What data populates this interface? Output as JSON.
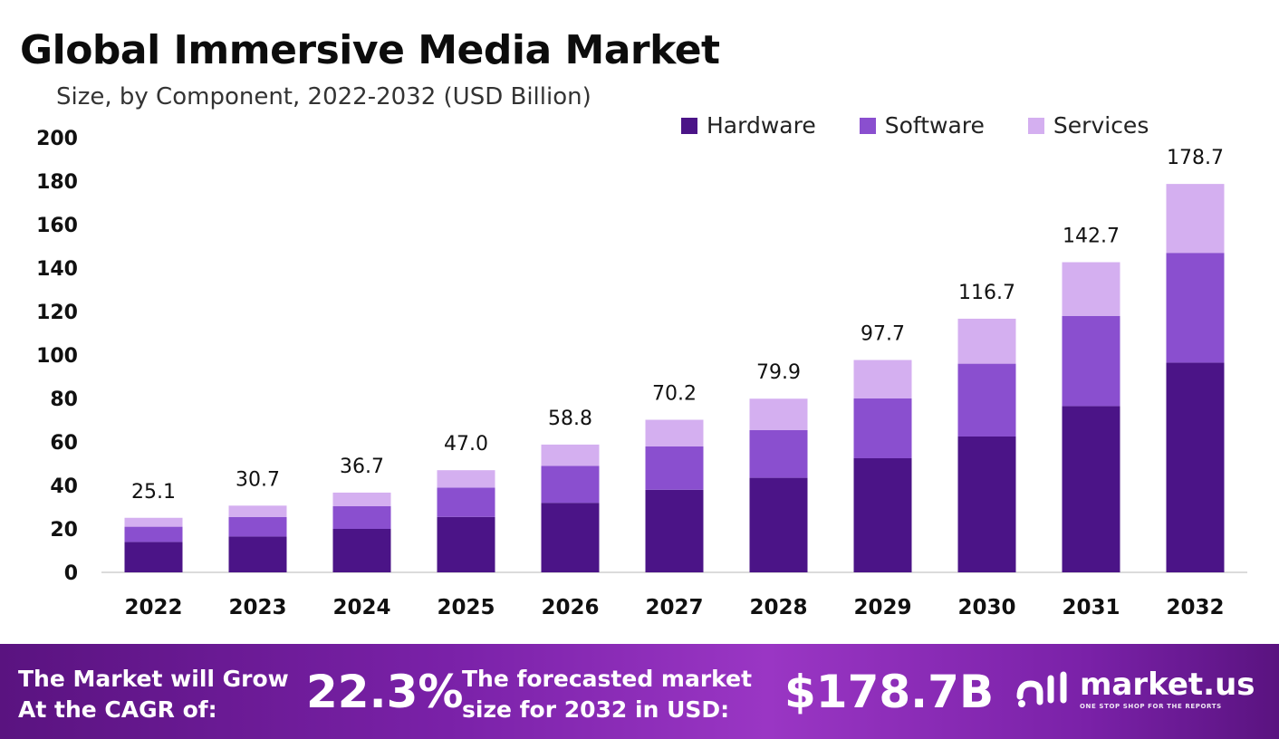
{
  "header": {
    "title": "Global Immersive Media Market",
    "subtitle": "Size, by Component, 2022-2032 (USD Billion)"
  },
  "legend": [
    {
      "label": "Hardware",
      "color": "#4b1487"
    },
    {
      "label": "Software",
      "color": "#8a4fcf"
    },
    {
      "label": "Services",
      "color": "#d4aff0"
    }
  ],
  "chart_data": {
    "type": "bar",
    "stacked": true,
    "categories": [
      "2022",
      "2023",
      "2024",
      "2025",
      "2026",
      "2027",
      "2028",
      "2029",
      "2030",
      "2031",
      "2032"
    ],
    "series": [
      {
        "name": "Hardware",
        "color": "#4b1487",
        "values": [
          14.0,
          16.5,
          20.0,
          25.5,
          32.0,
          38.0,
          43.5,
          52.5,
          62.5,
          76.5,
          96.5
        ]
      },
      {
        "name": "Software",
        "color": "#8a4fcf",
        "values": [
          7.0,
          9.0,
          10.5,
          13.5,
          17.0,
          20.0,
          22.0,
          27.5,
          33.5,
          41.5,
          50.5
        ]
      },
      {
        "name": "Services",
        "color": "#d4aff0",
        "values": [
          4.1,
          5.2,
          6.2,
          8.0,
          9.8,
          12.2,
          14.4,
          17.7,
          20.7,
          24.7,
          31.7
        ]
      }
    ],
    "totals": [
      "25.1",
      "30.7",
      "36.7",
      "47.0",
      "58.8",
      "70.2",
      "79.9",
      "97.7",
      "116.7",
      "142.7",
      "178.7"
    ],
    "ylim": [
      0,
      200
    ],
    "yticks": [
      0,
      20,
      40,
      60,
      80,
      100,
      120,
      140,
      160,
      180,
      200
    ],
    "grid": false,
    "legend_position": "top-right"
  },
  "footer": {
    "cagr_label": "The Market will Grow At the CAGR of:",
    "cagr_value": "22.3%",
    "forecast_label": "The forecasted market size for 2032 in USD:",
    "forecast_value": "$178.7B",
    "brand_name": "market.us",
    "brand_tagline": "ONE STOP SHOP FOR THE REPORTS"
  }
}
